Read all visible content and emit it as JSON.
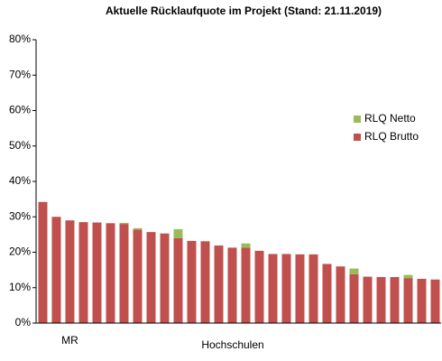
{
  "chart_data": {
    "type": "stacked_bar",
    "title": "Aktuelle Rücklaufquote im Projekt (Stand: 21.11.2019)",
    "x_label": "Hochschulen",
    "categories": [
      null,
      null,
      "MR",
      null,
      null,
      null,
      null,
      null,
      null,
      null,
      null,
      null,
      null,
      null,
      null,
      null,
      null,
      null,
      null,
      null,
      null,
      null,
      null,
      null,
      null,
      null,
      null,
      null,
      null,
      null
    ],
    "series": [
      {
        "name": "RLQ Brutto",
        "color": "#c0504d",
        "values": [
          34.2,
          30.0,
          29.0,
          28.5,
          28.4,
          28.2,
          28.0,
          26.4,
          25.7,
          25.3,
          24.0,
          23.2,
          23.1,
          21.9,
          21.3,
          21.3,
          20.4,
          19.5,
          19.5,
          19.4,
          19.4,
          16.7,
          16.0,
          13.8,
          13.1,
          13.0,
          13.0,
          12.7,
          12.5,
          12.3
        ]
      },
      {
        "name": "RLQ Netto",
        "color": "#9bbb59",
        "values": [
          0,
          0,
          0,
          0,
          0,
          0,
          0.3,
          0.4,
          0,
          0,
          2.5,
          0,
          0,
          0,
          0,
          1.2,
          0,
          0,
          0,
          0,
          0,
          0,
          0,
          1.6,
          0,
          0,
          0,
          0.9,
          0,
          0
        ]
      }
    ],
    "ylim": [
      0,
      80
    ],
    "yticks": [
      {
        "value": 0,
        "label": "0%"
      },
      {
        "value": 10,
        "label": "10%"
      },
      {
        "value": 20,
        "label": "20%"
      },
      {
        "value": 30,
        "label": "30%"
      },
      {
        "value": 40,
        "label": "40%"
      },
      {
        "value": 50,
        "label": "50%"
      },
      {
        "value": 60,
        "label": "60%"
      },
      {
        "value": 70,
        "label": "70%"
      },
      {
        "value": 80,
        "label": "80%"
      }
    ],
    "grid": false,
    "legend": "right"
  }
}
